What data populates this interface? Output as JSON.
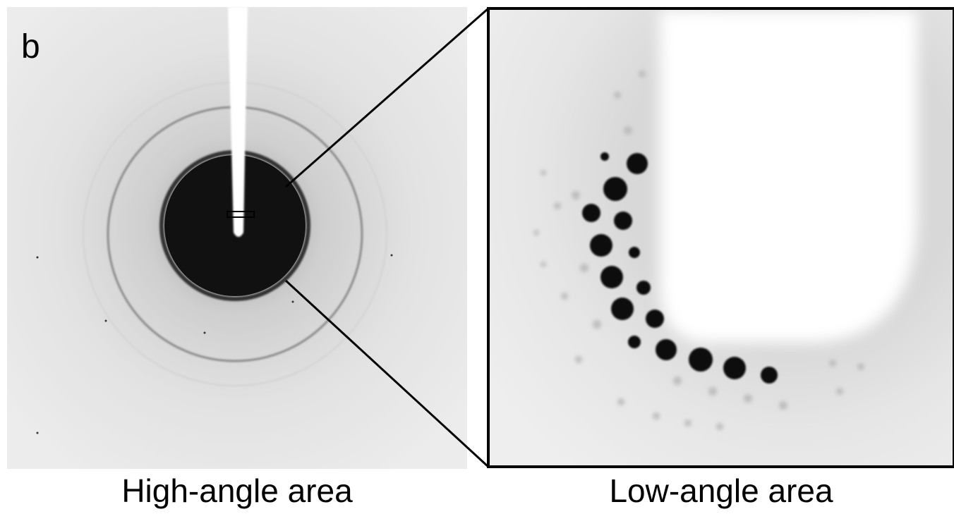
{
  "panel_label": "b",
  "panels": [
    {
      "caption": "High-angle area"
    },
    {
      "caption": "Low-angle area"
    }
  ]
}
